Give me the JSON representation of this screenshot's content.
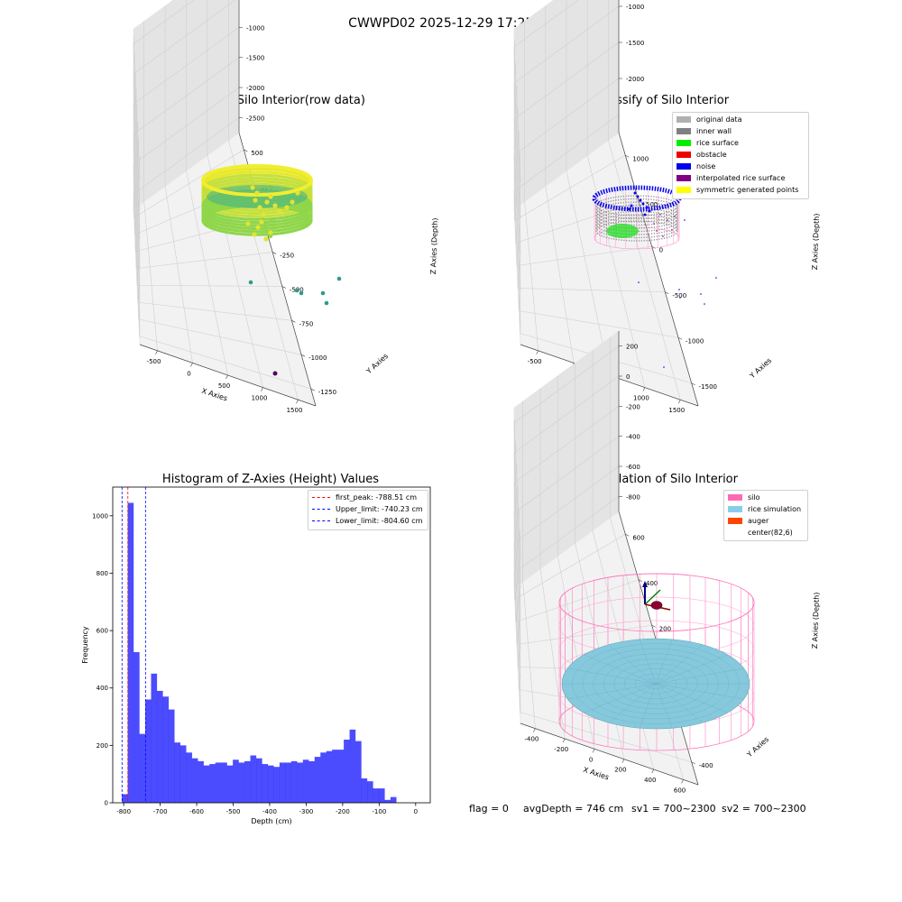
{
  "suptitle": "CWWPD02 2025-12-29 17:25:31",
  "panels": {
    "raw": {
      "title": "3D Plot of Silo Interior(row data)",
      "xlabel": "X Axies",
      "ylabel": "Y Axies",
      "zlabel": "Z Axies (Depth)",
      "xticks": [
        "-500",
        "0",
        "500",
        "1000",
        "1500"
      ],
      "yticks": [
        "500",
        "250",
        "0",
        "-250",
        "-500",
        "-750",
        "-1000",
        "-1250"
      ],
      "zticks": [
        "0",
        "-500",
        "-1000",
        "-1500",
        "-2000",
        "-2500"
      ]
    },
    "classify": {
      "title": "3D classify of Silo Interior",
      "xlabel": "X Axies",
      "ylabel": "Y Axies",
      "zlabel": "Z Axies (Depth)",
      "xticks": [
        "-500",
        "0",
        "500",
        "1000",
        "1500"
      ],
      "yticks": [
        "1000",
        "500",
        "0",
        "-500",
        "-1000",
        "-1500"
      ],
      "zticks": [
        "-500",
        "-1000",
        "-1500",
        "-2000"
      ],
      "legend": [
        {
          "label": "original data",
          "color": "#b0b0b0"
        },
        {
          "label": "inner wall",
          "color": "#808080"
        },
        {
          "label": "rice surface",
          "color": "#00ee00"
        },
        {
          "label": "obstacle",
          "color": "#ee0000"
        },
        {
          "label": "noise",
          "color": "#0000ee"
        },
        {
          "label": "interpolated rice surface",
          "color": "#800080"
        },
        {
          "label": "symmetric generated points",
          "color": "#ffff00"
        }
      ]
    },
    "simulation": {
      "title": "3D simulation of Silo Interior",
      "xlabel": "X Axies",
      "ylabel": "Y Axies",
      "zlabel": "Z Axies (Depth)",
      "xticks": [
        "-400",
        "-200",
        "0",
        "200",
        "400",
        "600"
      ],
      "yticks": [
        "600",
        "400",
        "200",
        "0",
        "-200",
        "-400"
      ],
      "zticks": [
        "200",
        "0",
        "-200",
        "-400",
        "-600",
        "-800"
      ],
      "legend": [
        {
          "label": "silo",
          "color": "#ff69b4"
        },
        {
          "label": "rice simulation",
          "color": "#87ceeb"
        },
        {
          "label": "auger",
          "color": "#ff4500"
        },
        {
          "label": "center(82,6)",
          "color": ""
        }
      ],
      "status": {
        "flag": "flag = 0",
        "avg": "avgDepth = 746 cm",
        "sv1": "sv1 = 700~2300",
        "sv2": "sv2 = 700~2300"
      }
    }
  },
  "chart_data": {
    "type": "bar",
    "title": "Histogram of Z-Axies (Height) Values",
    "xlabel": "Depth (cm)",
    "ylabel": "Frequency",
    "xlim": [
      -830,
      40
    ],
    "ylim": [
      0,
      1100
    ],
    "xticks": [
      -800,
      -700,
      -600,
      -500,
      -400,
      -300,
      -200,
      -100,
      0
    ],
    "yticks": [
      0,
      200,
      400,
      600,
      800,
      1000
    ],
    "bin_start": -805,
    "bin_width": 16,
    "values": [
      30,
      1045,
      525,
      240,
      360,
      450,
      390,
      370,
      325,
      210,
      200,
      175,
      155,
      145,
      130,
      135,
      140,
      140,
      130,
      150,
      140,
      145,
      165,
      155,
      135,
      130,
      125,
      140,
      140,
      145,
      140,
      150,
      145,
      160,
      175,
      180,
      185,
      185,
      220,
      255,
      215,
      85,
      75,
      50,
      50,
      10,
      20
    ],
    "color": "#0000ff",
    "vlines": [
      {
        "label": "first_peak: -788.51 cm",
        "x": -788.51,
        "color": "#ff0000"
      },
      {
        "label": "Upper_limit: -740.23 cm",
        "x": -740.23,
        "color": "#0000ff"
      },
      {
        "label": "Lower_limit: -804.60 cm",
        "x": -804.6,
        "color": "#0000ff"
      }
    ],
    "legend_position": "upper-right"
  }
}
